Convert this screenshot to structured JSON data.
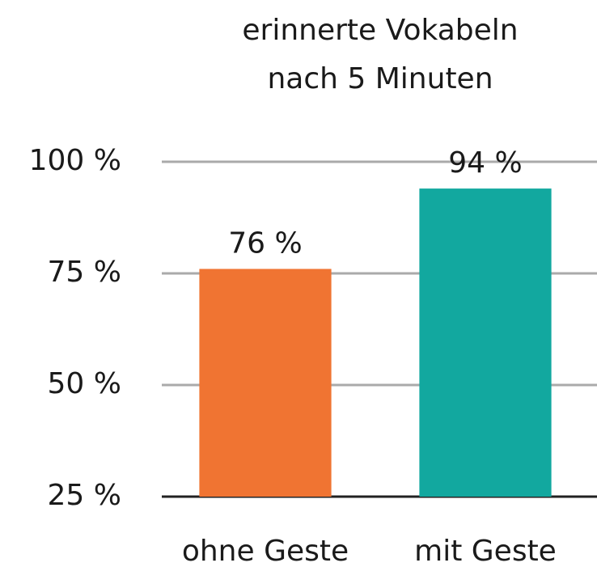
{
  "chart_data": {
    "type": "bar",
    "title": "erinnerte Vokabeln nach 5 Minuten",
    "categories": [
      "ohne Geste",
      "mit Geste"
    ],
    "values": [
      76,
      94
    ],
    "value_labels": [
      "76 %",
      "94 %"
    ],
    "colors": [
      "#f07432",
      "#12a89f"
    ],
    "ylim": [
      25,
      100
    ],
    "yticks": [
      {
        "value": 25,
        "label": "25 %"
      },
      {
        "value": 50,
        "label": "50 %"
      },
      {
        "value": 75,
        "label": "75 %"
      },
      {
        "value": 100,
        "label": "100 %"
      }
    ],
    "grid": true
  }
}
